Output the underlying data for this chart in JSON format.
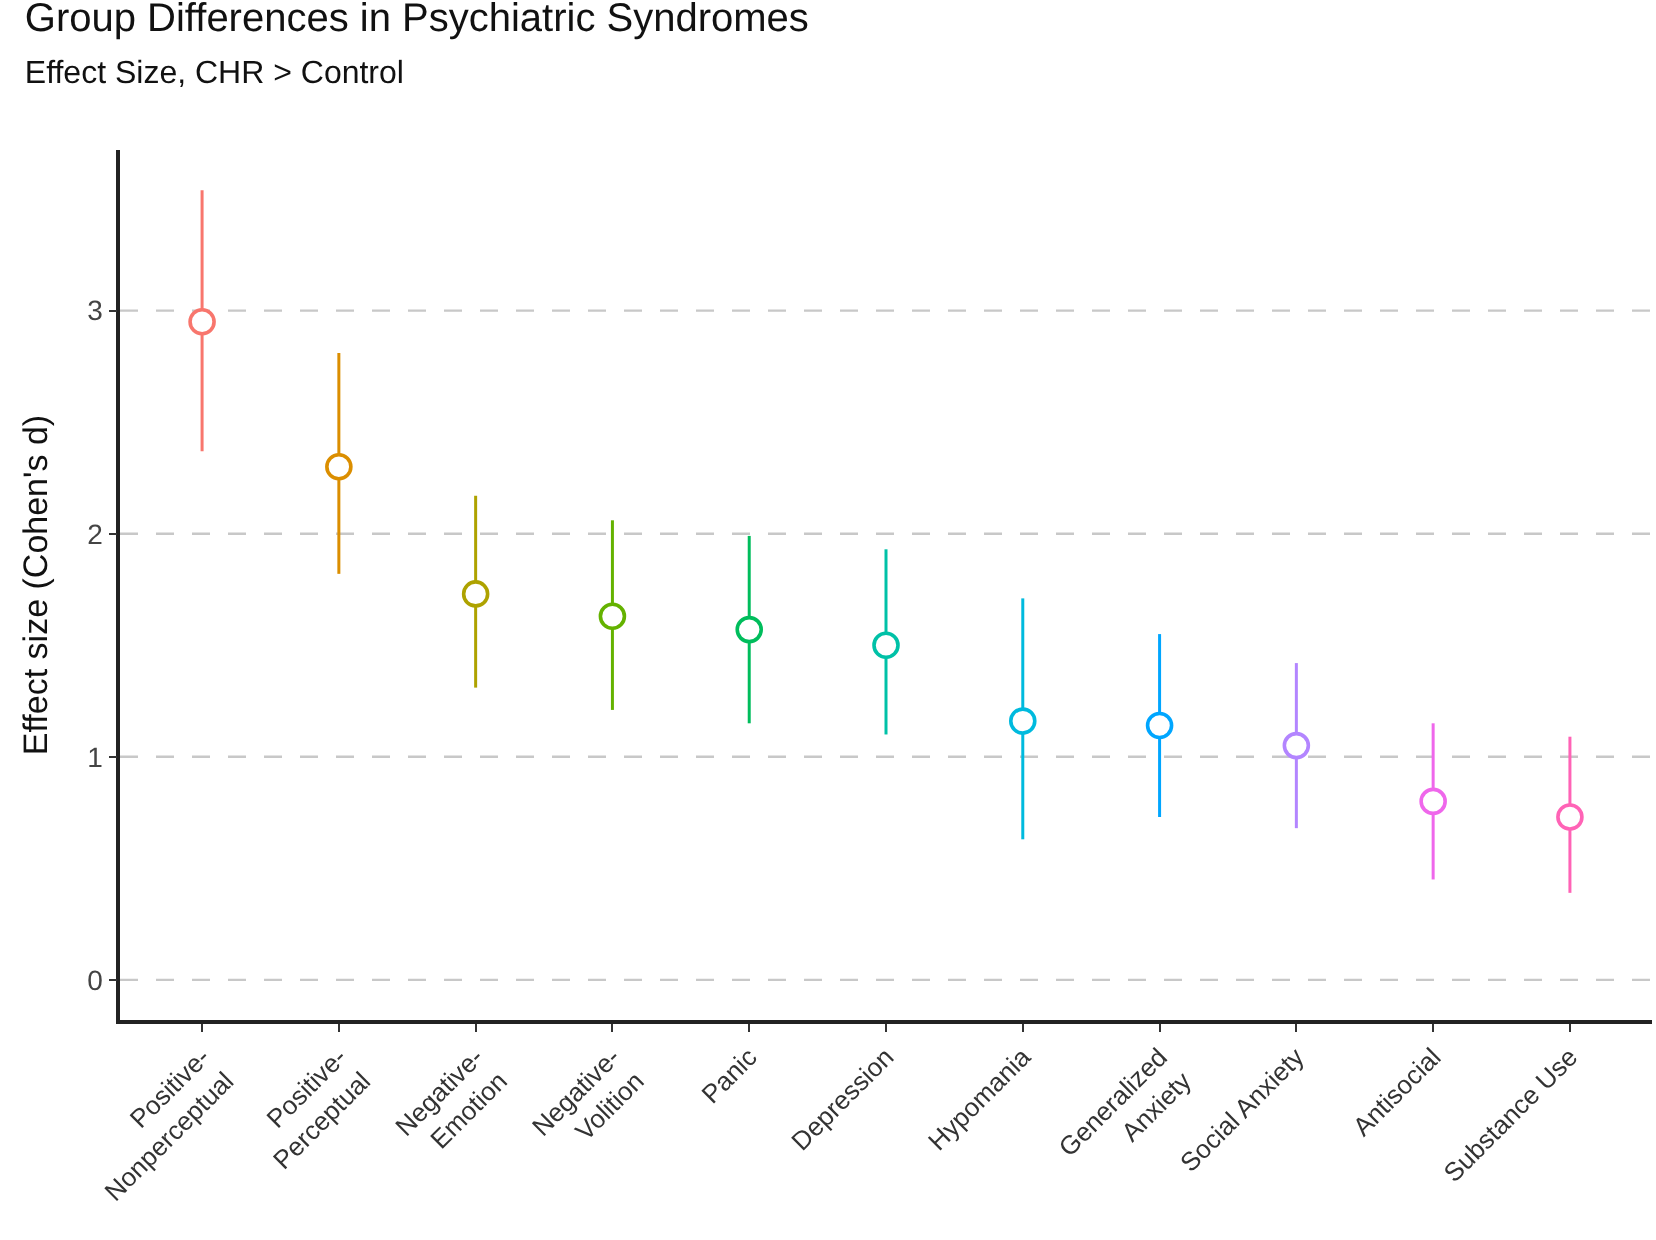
{
  "chart_data": {
    "type": "scatter",
    "title": "Group Differences in Psychiatric Syndromes",
    "subtitle": "Effect Size, CHR > Control",
    "ylabel": "Effect size (Cohen's d)",
    "categories": [
      "Positive-\nNonperceptual",
      "Positive-\nPerceptual",
      "Negative-\nEmotion",
      "Negative-\nVolition",
      "Panic",
      "Depression",
      "Hypomania",
      "Generalized\nAnxiety",
      "Social Anxiety",
      "Antisocial",
      "Substance Use"
    ],
    "values": [
      2.95,
      2.3,
      1.73,
      1.63,
      1.57,
      1.5,
      1.16,
      1.14,
      1.05,
      0.8,
      0.73
    ],
    "errors": [
      [
        2.37,
        3.54
      ],
      [
        1.82,
        2.81
      ],
      [
        1.31,
        2.17
      ],
      [
        1.21,
        2.06
      ],
      [
        1.15,
        1.99
      ],
      [
        1.1,
        1.93
      ],
      [
        0.63,
        1.71
      ],
      [
        0.73,
        1.55
      ],
      [
        0.68,
        1.42
      ],
      [
        0.45,
        1.15
      ],
      [
        0.39,
        1.09
      ]
    ],
    "colors": [
      "#f8766d",
      "#db8e00",
      "#aea200",
      "#64b200",
      "#00bd5c",
      "#00c1a7",
      "#00bade",
      "#00a6ff",
      "#b385ff",
      "#ef67eb",
      "#ff63b6"
    ],
    "ylim": [
      -0.18,
      3.72
    ],
    "yticks": [
      0,
      1,
      2,
      3
    ],
    "grid": "y",
    "marker": "circle",
    "legend": false
  }
}
